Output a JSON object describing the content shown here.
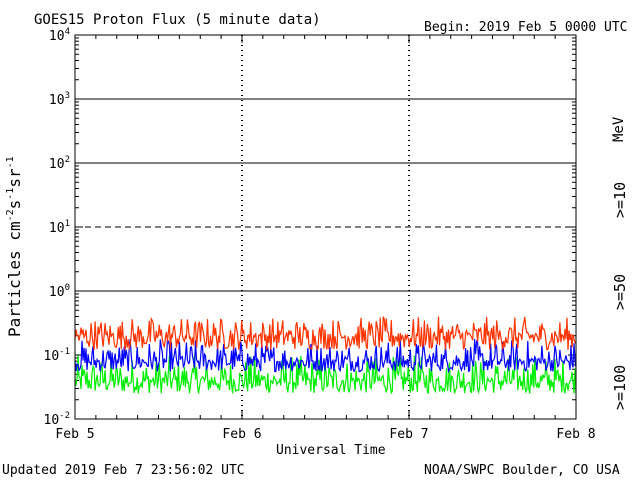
{
  "chart_data": {
    "type": "line",
    "title": "GOES15 Proton Flux (5 minute data)",
    "begin": "Begin: 2019 Feb 5 0000 UTC",
    "ylabel": "Particles cm",
    "ylabel_parts": [
      "Particles cm",
      "-2",
      "s",
      "-1",
      "sr",
      "-1"
    ],
    "xlabel": "Universal Time",
    "yscale": "log",
    "ylim": [
      0.01,
      10000
    ],
    "xlim": [
      "2019-02-05",
      "2019-02-08"
    ],
    "y_ticks": [
      {
        "base": "10",
        "exp": "-2",
        "value": 0.01
      },
      {
        "base": "10",
        "exp": "-1",
        "value": 0.1
      },
      {
        "base": "10",
        "exp": "0",
        "value": 1
      },
      {
        "base": "10",
        "exp": "1",
        "value": 10
      },
      {
        "base": "10",
        "exp": "2",
        "value": 100
      },
      {
        "base": "10",
        "exp": "3",
        "value": 1000
      },
      {
        "base": "10",
        "exp": "4",
        "value": 10000
      }
    ],
    "x_ticks": [
      {
        "label": "Feb 5",
        "value": "2019-02-05"
      },
      {
        "label": "Feb 6",
        "value": "2019-02-06"
      },
      {
        "label": "Feb 7",
        "value": "2019-02-07"
      },
      {
        "label": "Feb 8",
        "value": "2019-02-08"
      }
    ],
    "threshold_lines": [
      {
        "value": 1,
        "style": "solid"
      },
      {
        "value": 10,
        "style": "dashed"
      },
      {
        "value": 100,
        "style": "solid"
      },
      {
        "value": 1000,
        "style": "solid"
      }
    ],
    "units_label": "MeV",
    "series": [
      {
        "name": ">=10",
        "color": "#ff3300",
        "median": 0.2,
        "min": 0.12,
        "max": 0.4
      },
      {
        "name": ">=50",
        "color": "#0000ff",
        "median": 0.08,
        "min": 0.055,
        "max": 0.18
      },
      {
        "name": ">=100",
        "color": "#00ee00",
        "median": 0.04,
        "min": 0.025,
        "max": 0.1
      }
    ]
  },
  "footer": {
    "updated": "Updated 2019 Feb  7 23:56:02 UTC",
    "source": "NOAA/SWPC Boulder, CO USA"
  }
}
